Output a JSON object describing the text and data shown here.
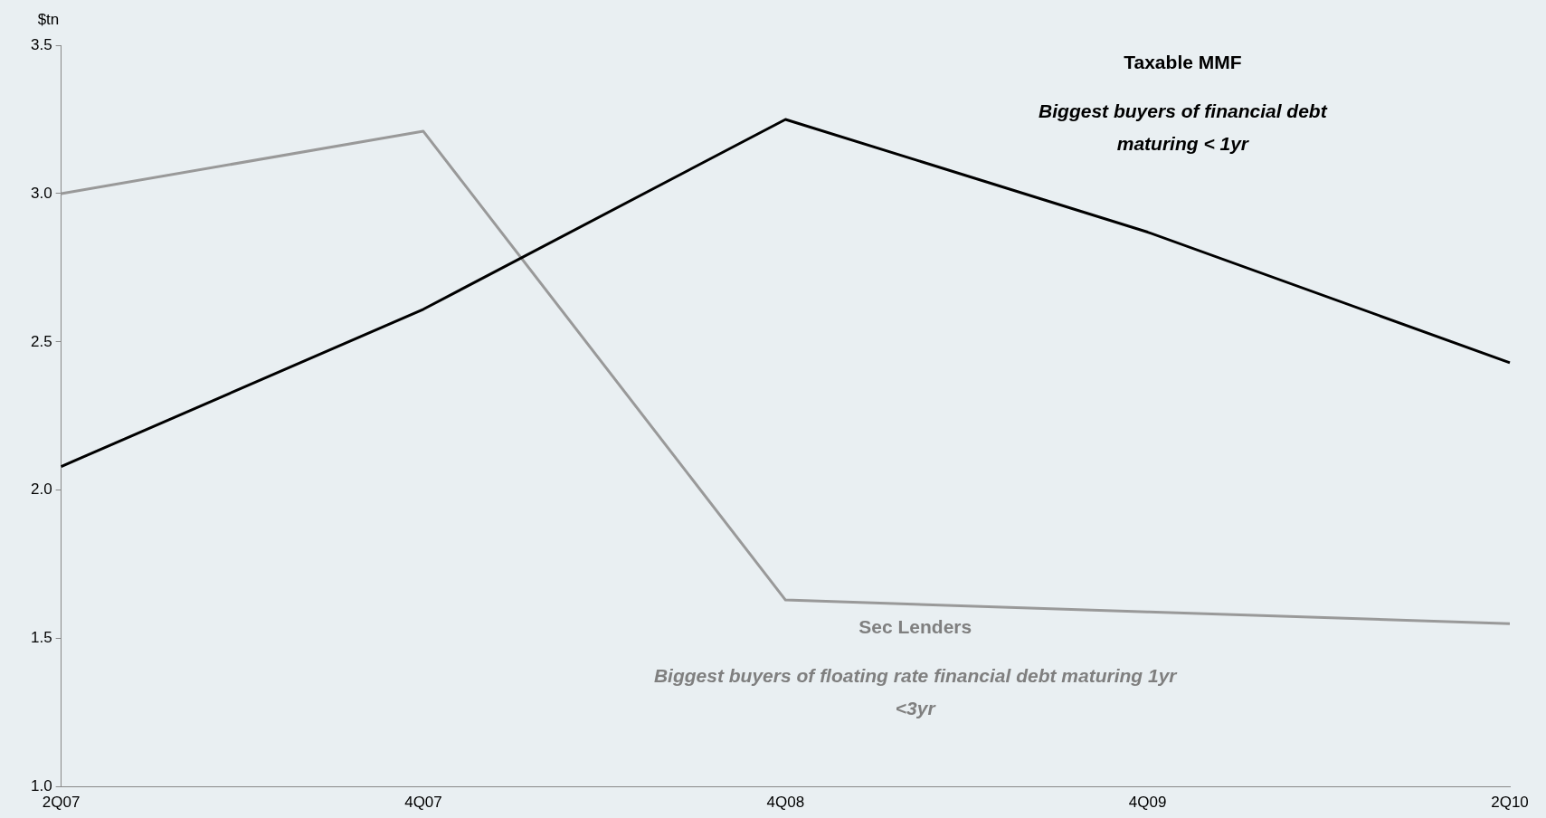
{
  "chart_data": {
    "type": "line",
    "ylabel": "$tn",
    "categories": [
      "2Q07",
      "4Q07",
      "4Q08",
      "4Q09",
      "2Q10"
    ],
    "series": [
      {
        "name": "Taxable MMF",
        "color": "#000000",
        "values": [
          2.08,
          2.61,
          3.25,
          2.87,
          2.43
        ]
      },
      {
        "name": "Sec Lenders",
        "color": "#999999",
        "values": [
          3.0,
          3.21,
          1.63,
          1.59,
          1.55
        ]
      }
    ],
    "annotations": [
      "Biggest buyers of financial debt maturing < 1yr",
      "Biggest buyers of floating rate financial debt maturing 1yr <3yr"
    ],
    "ylim": [
      1.0,
      3.5
    ],
    "yticks": [
      {
        "value": 1.0,
        "label": "1.0"
      },
      {
        "value": 1.5,
        "label": "1.5"
      },
      {
        "value": 2.0,
        "label": "2.0"
      },
      {
        "value": 2.5,
        "label": "2.5"
      },
      {
        "value": 3.0,
        "label": "3.0"
      },
      {
        "value": 3.5,
        "label": "3.5"
      }
    ],
    "grid": false,
    "legend": false,
    "marker": "none",
    "line_style": "solid"
  }
}
